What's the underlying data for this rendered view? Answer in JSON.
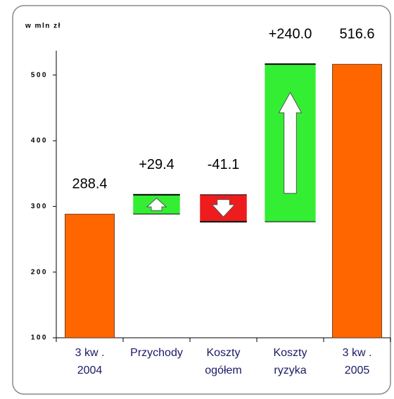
{
  "chart_data": {
    "type": "waterfall",
    "y_label": "w mln zł",
    "categories": [
      [
        "3 kw .",
        "2004"
      ],
      [
        "Przychody"
      ],
      [
        "Koszty",
        "ogółem"
      ],
      [
        "Koszty",
        "ryzyka"
      ],
      [
        "3 kw .",
        "2005"
      ]
    ],
    "values": [
      288.4,
      29.4,
      -41.1,
      240.0,
      516.6
    ],
    "value_labels": [
      "288.4",
      "+29.4",
      "-41.1",
      "+240.0",
      "516.6"
    ],
    "measure": [
      "absolute",
      "relative",
      "relative",
      "relative",
      "absolute"
    ],
    "colors": {
      "absolute": "#ff6600",
      "increase": "#33ee33",
      "decrease": "#ee1c1c"
    },
    "ylim": [
      100,
      580
    ],
    "yticks": [
      100,
      200,
      300,
      400,
      500
    ]
  }
}
